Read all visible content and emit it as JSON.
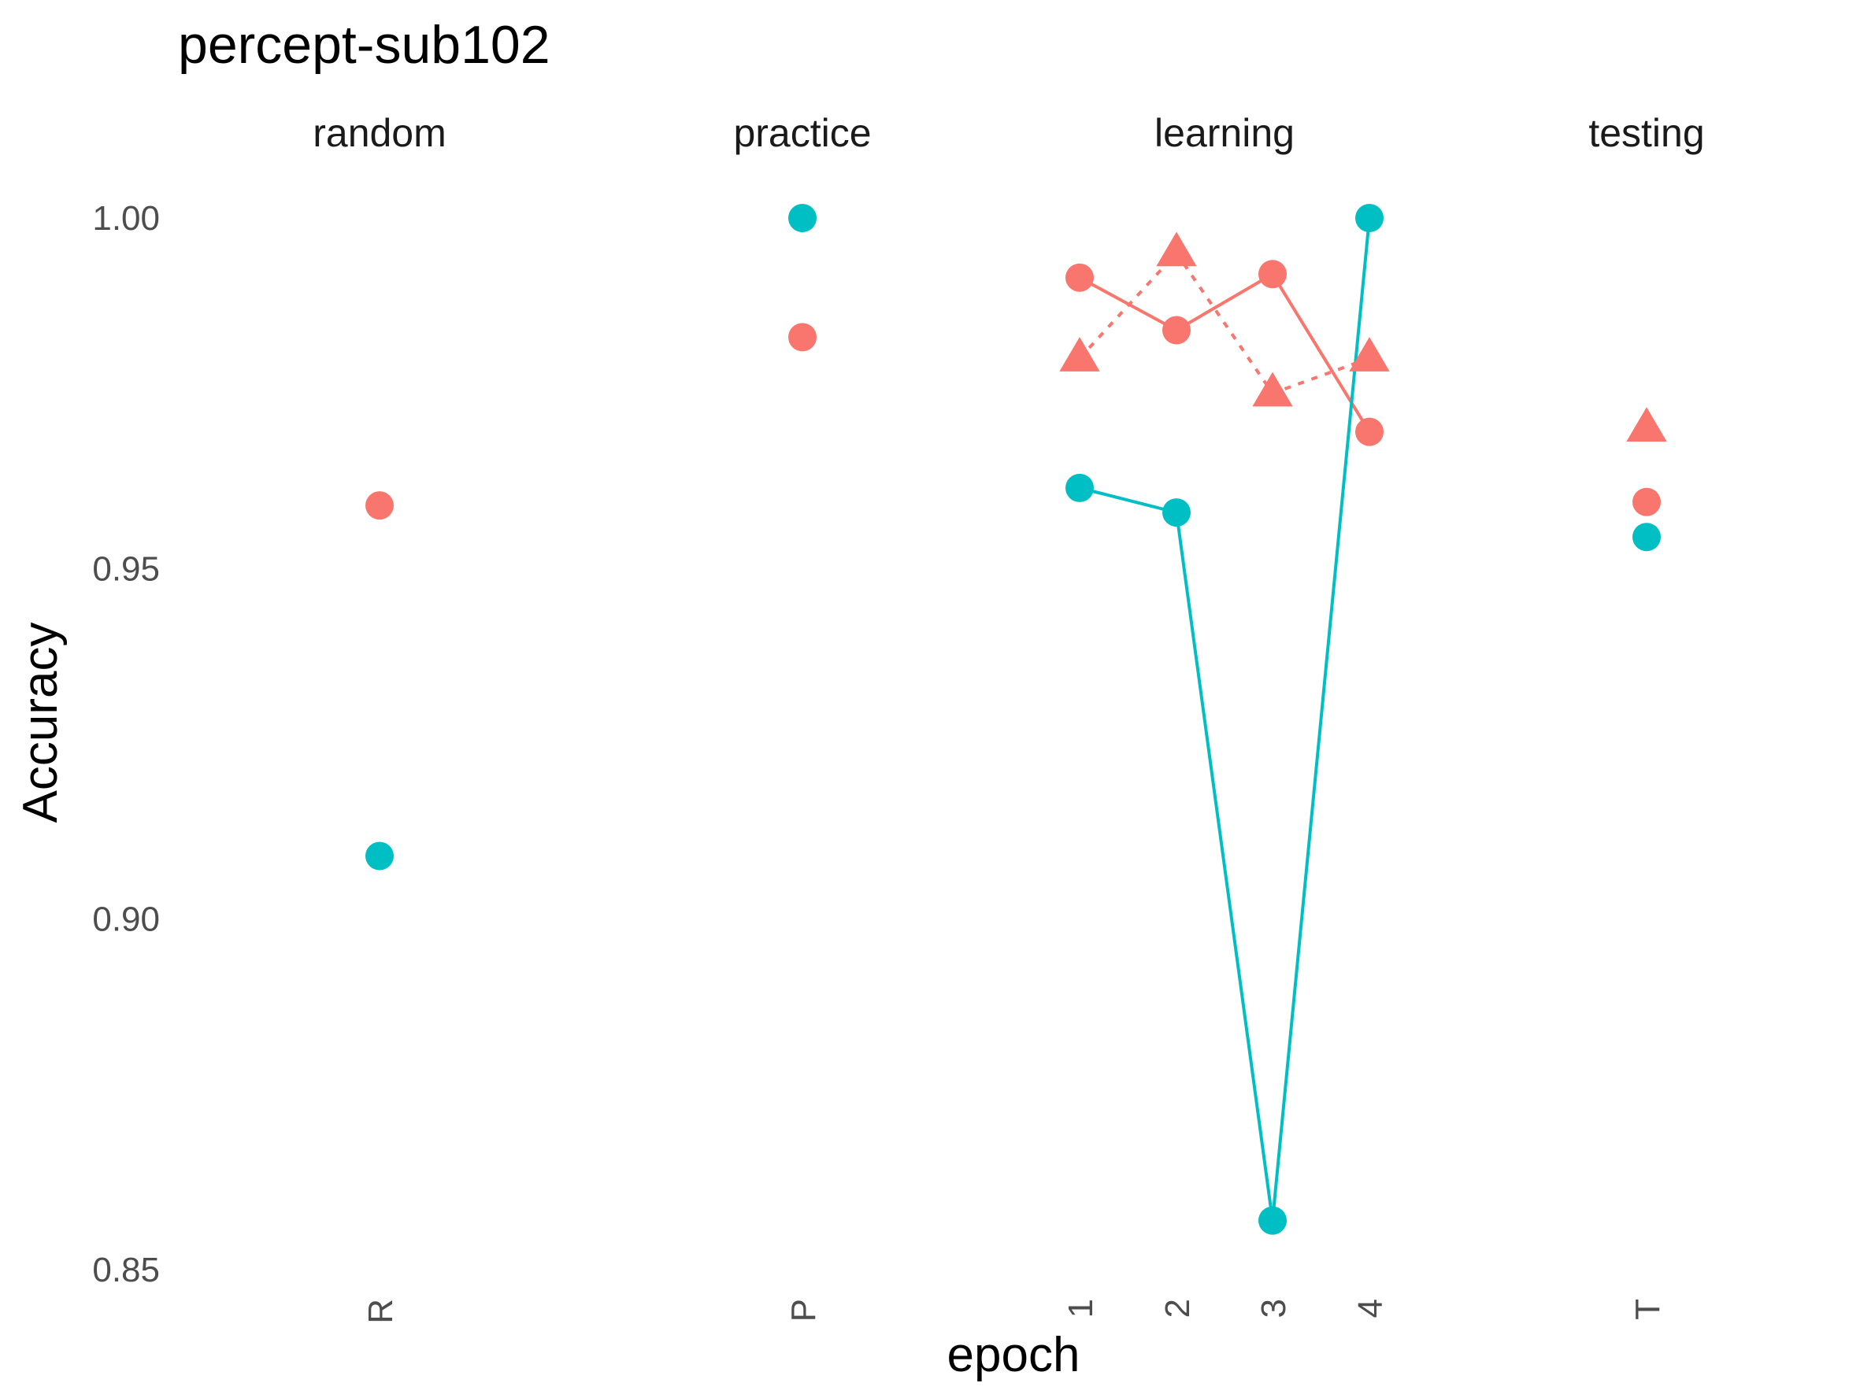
{
  "chart_data": {
    "type": "scatter",
    "title": "percept-sub102",
    "xlabel": "epoch",
    "ylabel": "Accuracy",
    "ylim": [
      0.85,
      1.0
    ],
    "yticks": [
      "0.85",
      "0.90",
      "0.95",
      "1.00"
    ],
    "grid": false,
    "legend": "none",
    "facets": [
      {
        "label": "random",
        "x": [
          "R"
        ]
      },
      {
        "label": "practice",
        "x": [
          "P"
        ]
      },
      {
        "label": "learning",
        "x": [
          "1",
          "2",
          "3",
          "4"
        ]
      },
      {
        "label": "testing",
        "x": [
          "T"
        ]
      }
    ],
    "series": [
      {
        "color": "#F8766D",
        "shape": "circle",
        "linestyle": "solid",
        "points": [
          {
            "facet": "random",
            "x": "R",
            "y": 0.959
          },
          {
            "facet": "practice",
            "x": "P",
            "y": 0.983
          },
          {
            "facet": "learning",
            "x": "1",
            "y": 0.9915
          },
          {
            "facet": "learning",
            "x": "2",
            "y": 0.984
          },
          {
            "facet": "learning",
            "x": "3",
            "y": 0.992
          },
          {
            "facet": "learning",
            "x": "4",
            "y": 0.9695
          },
          {
            "facet": "testing",
            "x": "T",
            "y": 0.9595
          }
        ]
      },
      {
        "color": "#F8766D",
        "shape": "triangle",
        "linestyle": "dotted",
        "points": [
          {
            "facet": "learning",
            "x": "1",
            "y": 0.98
          },
          {
            "facet": "learning",
            "x": "2",
            "y": 0.995
          },
          {
            "facet": "learning",
            "x": "3",
            "y": 0.975
          },
          {
            "facet": "learning",
            "x": "4",
            "y": 0.98
          },
          {
            "facet": "testing",
            "x": "T",
            "y": 0.97
          }
        ]
      },
      {
        "color": "#00BFC4",
        "shape": "circle",
        "linestyle": "solid",
        "points": [
          {
            "facet": "random",
            "x": "R",
            "y": 0.909
          },
          {
            "facet": "practice",
            "x": "P",
            "y": 1.0
          },
          {
            "facet": "learning",
            "x": "1",
            "y": 0.9615
          },
          {
            "facet": "learning",
            "x": "2",
            "y": 0.958
          },
          {
            "facet": "learning",
            "x": "3",
            "y": 0.857
          },
          {
            "facet": "learning",
            "x": "4",
            "y": 1.0
          },
          {
            "facet": "testing",
            "x": "T",
            "y": 0.9545
          }
        ]
      }
    ]
  }
}
